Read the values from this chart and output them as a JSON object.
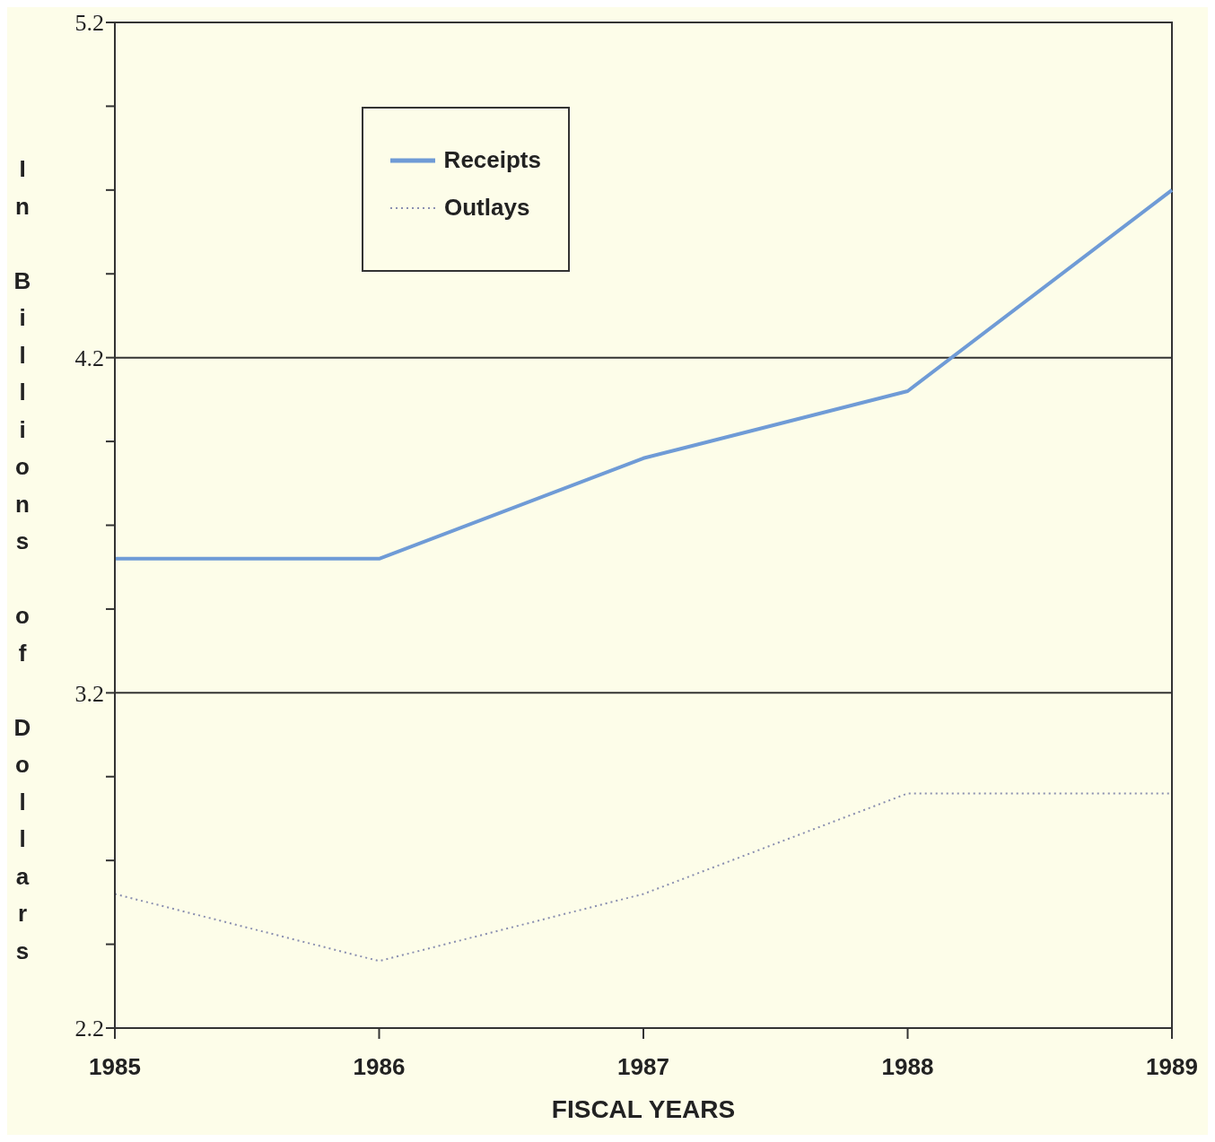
{
  "chart_data": {
    "type": "line",
    "xlabel": "FISCAL YEARS",
    "ylabel": "In Billions of Dollars",
    "categories": [
      "1985",
      "1986",
      "1987",
      "1988",
      "1989"
    ],
    "series": [
      {
        "name": "Receipts",
        "color": "#6f9bd6",
        "line_style": "solid",
        "values": [
          3.6,
          3.6,
          3.9,
          4.1,
          4.7
        ]
      },
      {
        "name": "Outlays",
        "color": "#8a8fb0",
        "line_style": "dotted",
        "values": [
          2.6,
          2.4,
          2.6,
          2.9,
          2.9
        ]
      }
    ],
    "ylim": [
      2.2,
      5.2
    ],
    "yticks": [
      2.2,
      {
        "value": 2.45,
        "label": null
      },
      {
        "value": 2.7,
        "label": null
      },
      {
        "value": 2.95,
        "label": null
      },
      3.2,
      {
        "value": 3.45,
        "label": null
      },
      {
        "value": 3.7,
        "label": null
      },
      {
        "value": 3.95,
        "label": null
      },
      4.2,
      {
        "value": 4.45,
        "label": null
      },
      {
        "value": 4.7,
        "label": null
      },
      {
        "value": 4.95,
        "label": null
      },
      5.2
    ],
    "grid": "y",
    "legend": "top left",
    "marker": "none"
  }
}
